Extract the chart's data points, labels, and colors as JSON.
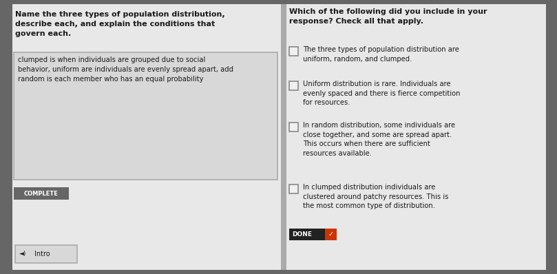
{
  "outer_bg": "#888888",
  "main_panel_color": "#e8e8e8",
  "answer_box_color": "#d8d8d8",
  "answer_box_border": "#aaaaaa",
  "complete_bg": "#666666",
  "complete_text_color": "#ffffff",
  "done_bg": "#222222",
  "done_text_color": "#ffffff",
  "done_check_color": "#cc3300",
  "text_color": "#1a1a1a",
  "checkbox_border": "#888888",
  "checkbox_fill": "#f0f0f0",
  "question_title": "Name the three types of population distribution,\ndescribe each, and explain the conditions that\ngovern each.",
  "answer_box_text": "clumped is when individuals are grouped due to social\nbehavior, uniform are individuals are evenly spread apart, add\nrandom is each member who has an equal probability",
  "complete_label": "COMPLETE",
  "right_title": "Which of the following did you include in your\nresponse? Check all that apply.",
  "checkboxes": [
    "The three types of population distribution are\nuniform, random, and clumped.",
    "Uniform distribution is rare. Individuals are\nevenly spaced and there is fierce competition\nfor resources.",
    "In random distribution, some individuals are\nclose together, and some are spread apart.\nThis occurs when there are sufficient\nresources available.",
    "In clumped distribution individuals are\nclustered around patchy resources. This is\nthe most common type of distribution."
  ],
  "done_label": "DONE",
  "intro_label": "Intro",
  "left_dark_strip_color": "#777777"
}
